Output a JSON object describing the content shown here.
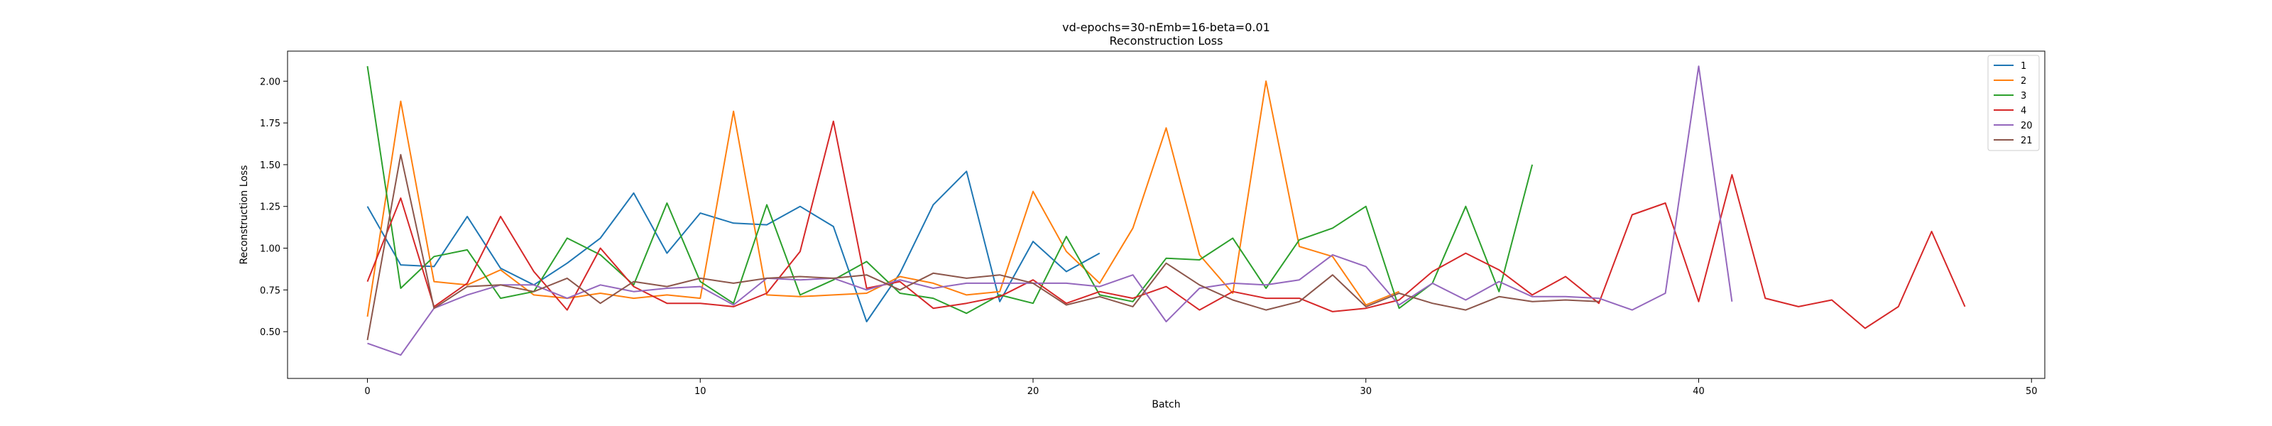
{
  "chart_data": {
    "type": "line",
    "title": "vd-epochs=30-nEmb=16-beta=0.01",
    "subtitle": "Reconstruction Loss",
    "xlabel": "Batch",
    "ylabel": "Reconstruction Loss",
    "xlim": [
      -2.4,
      50.4
    ],
    "ylim": [
      0.22,
      2.18
    ],
    "xticks": [
      0,
      10,
      20,
      30,
      40,
      50
    ],
    "yticks": [
      0.5,
      0.75,
      1.0,
      1.25,
      1.5,
      1.75,
      2.0
    ],
    "xtick_labels": [
      "0",
      "10",
      "20",
      "30",
      "40",
      "50"
    ],
    "ytick_labels": [
      "0.50",
      "0.75",
      "1.00",
      "1.25",
      "1.50",
      "1.75",
      "2.00"
    ],
    "legend_position": "top-right",
    "grid": false,
    "series": [
      {
        "name": "1",
        "color": "#1f77b4",
        "values": [
          1.25,
          0.9,
          0.89,
          1.19,
          0.88,
          0.78,
          0.91,
          1.06,
          1.33,
          0.97,
          1.21,
          1.15,
          1.14,
          1.25,
          1.13,
          0.56,
          0.85,
          1.26,
          1.46,
          0.68,
          1.04,
          0.86,
          0.97
        ]
      },
      {
        "name": "2",
        "color": "#ff7f0e",
        "values": [
          0.59,
          1.88,
          0.8,
          0.78,
          0.87,
          0.72,
          0.7,
          0.73,
          0.7,
          0.72,
          0.7,
          1.82,
          0.72,
          0.71,
          0.72,
          0.73,
          0.83,
          0.79,
          0.72,
          0.74,
          1.34,
          0.98,
          0.79,
          1.12,
          1.72,
          0.96,
          0.73,
          2.0,
          1.01,
          0.95,
          0.66,
          0.74
        ]
      },
      {
        "name": "3",
        "color": "#2ca02c",
        "values": [
          2.09,
          0.76,
          0.95,
          0.99,
          0.7,
          0.74,
          1.06,
          0.96,
          0.78,
          1.27,
          0.8,
          0.67,
          1.26,
          0.72,
          0.81,
          0.92,
          0.73,
          0.7,
          0.61,
          0.72,
          0.67,
          1.07,
          0.72,
          0.68,
          0.94,
          0.93,
          1.06,
          0.76,
          1.05,
          1.12,
          1.25,
          0.64,
          0.79,
          1.25,
          0.74,
          1.5
        ]
      },
      {
        "name": "4",
        "color": "#d62728",
        "values": [
          0.8,
          1.3,
          0.65,
          0.79,
          1.19,
          0.86,
          0.63,
          1.0,
          0.77,
          0.67,
          0.67,
          0.65,
          0.73,
          0.98,
          1.76,
          0.76,
          0.8,
          0.64,
          0.67,
          0.71,
          0.81,
          0.67,
          0.74,
          0.7,
          0.77,
          0.63,
          0.74,
          0.7,
          0.7,
          0.62,
          0.64,
          0.69,
          0.86,
          0.97,
          0.87,
          0.72,
          0.83,
          0.67,
          1.2,
          1.27,
          0.68,
          1.44,
          0.7,
          0.65,
          0.69,
          0.52,
          0.65,
          1.1,
          0.65
        ]
      },
      {
        "name": "20",
        "color": "#9467bd",
        "values": [
          0.43,
          0.36,
          0.64,
          0.72,
          0.78,
          0.78,
          0.7,
          0.78,
          0.74,
          0.76,
          0.77,
          0.66,
          0.82,
          0.81,
          0.82,
          0.75,
          0.81,
          0.76,
          0.79,
          0.79,
          0.79,
          0.79,
          0.77,
          0.84,
          0.56,
          0.76,
          0.79,
          0.78,
          0.81,
          0.96,
          0.89,
          0.66,
          0.79,
          0.69,
          0.8,
          0.71,
          0.71,
          0.7,
          0.63,
          0.73,
          2.09,
          0.68
        ]
      },
      {
        "name": "21",
        "color": "#8c564b",
        "values": [
          0.45,
          1.56,
          0.64,
          0.77,
          0.78,
          0.74,
          0.82,
          0.67,
          0.8,
          0.77,
          0.82,
          0.79,
          0.82,
          0.83,
          0.82,
          0.84,
          0.75,
          0.85,
          0.82,
          0.84,
          0.79,
          0.66,
          0.71,
          0.65,
          0.91,
          0.78,
          0.69,
          0.63,
          0.68,
          0.84,
          0.65,
          0.73,
          0.67,
          0.63,
          0.71,
          0.68,
          0.69,
          0.68
        ]
      }
    ]
  }
}
